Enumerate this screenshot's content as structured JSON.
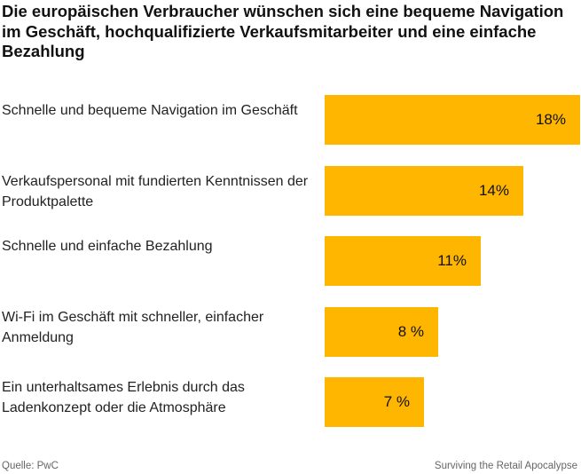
{
  "title": "Die europäischen Verbraucher wünschen sich eine bequeme Navigation im Geschäft, hochqualifizierte Verkaufsmitarbeiter und eine einfache Bezahlung",
  "chart_data": {
    "type": "bar",
    "orientation": "horizontal",
    "categories": [
      "Schnelle und bequeme Navigation im Geschäft",
      "Verkaufspersonal mit fundierten Kenntnissen der Produktpalette",
      "Schnelle und einfache Bezahlung",
      "Wi-Fi im Geschäft mit schneller, einfacher Anmeldung",
      "Ein unterhaltsames Erlebnis durch das Ladenkonzept oder die Atmosphäre"
    ],
    "values": [
      18,
      14,
      11,
      8,
      7
    ],
    "value_labels": [
      "18%",
      "14%",
      "11%",
      "8 %",
      "7 %"
    ],
    "unit": "%",
    "bar_color": "#FFB600",
    "xlim": [
      0,
      18
    ],
    "grid": false,
    "legend": "none"
  },
  "footer": {
    "source": "Quelle: PwC",
    "brand": "Surviving the Retail Apocalypse"
  }
}
